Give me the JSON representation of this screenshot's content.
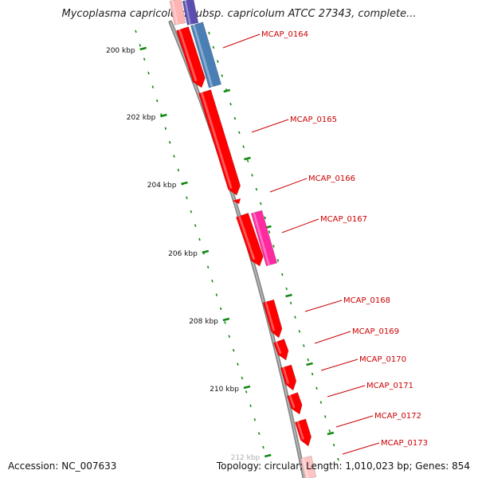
{
  "title": "Mycoplasma capricolum subsp. capricolum ATCC 27343, complete...",
  "footer": {
    "accession": "Accession: NC_007633",
    "summary": "Topology: circular; Length: 1,010,023 bp; Genes: 854"
  },
  "colors": {
    "gene_red": "#ff0000",
    "gene_blue": "#4a7fb5",
    "gene_purple": "#5a4fb0",
    "gene_pink": "#ff2aa0",
    "label": "#cc0000",
    "tick_green": "#118811",
    "backbone": "#888888"
  },
  "ticks": [
    "200 kbp",
    "202 kbp",
    "204 kbp",
    "206 kbp",
    "208 kbp",
    "210 kbp",
    "212 kbp"
  ],
  "genes": [
    {
      "label": "MCAP_0164"
    },
    {
      "label": "MCAP_0165"
    },
    {
      "label": "MCAP_0166"
    },
    {
      "label": "MCAP_0167"
    },
    {
      "label": "MCAP_0168"
    },
    {
      "label": "MCAP_0169"
    },
    {
      "label": "MCAP_0170"
    },
    {
      "label": "MCAP_0171"
    },
    {
      "label": "MCAP_0172"
    },
    {
      "label": "MCAP_0173"
    }
  ]
}
